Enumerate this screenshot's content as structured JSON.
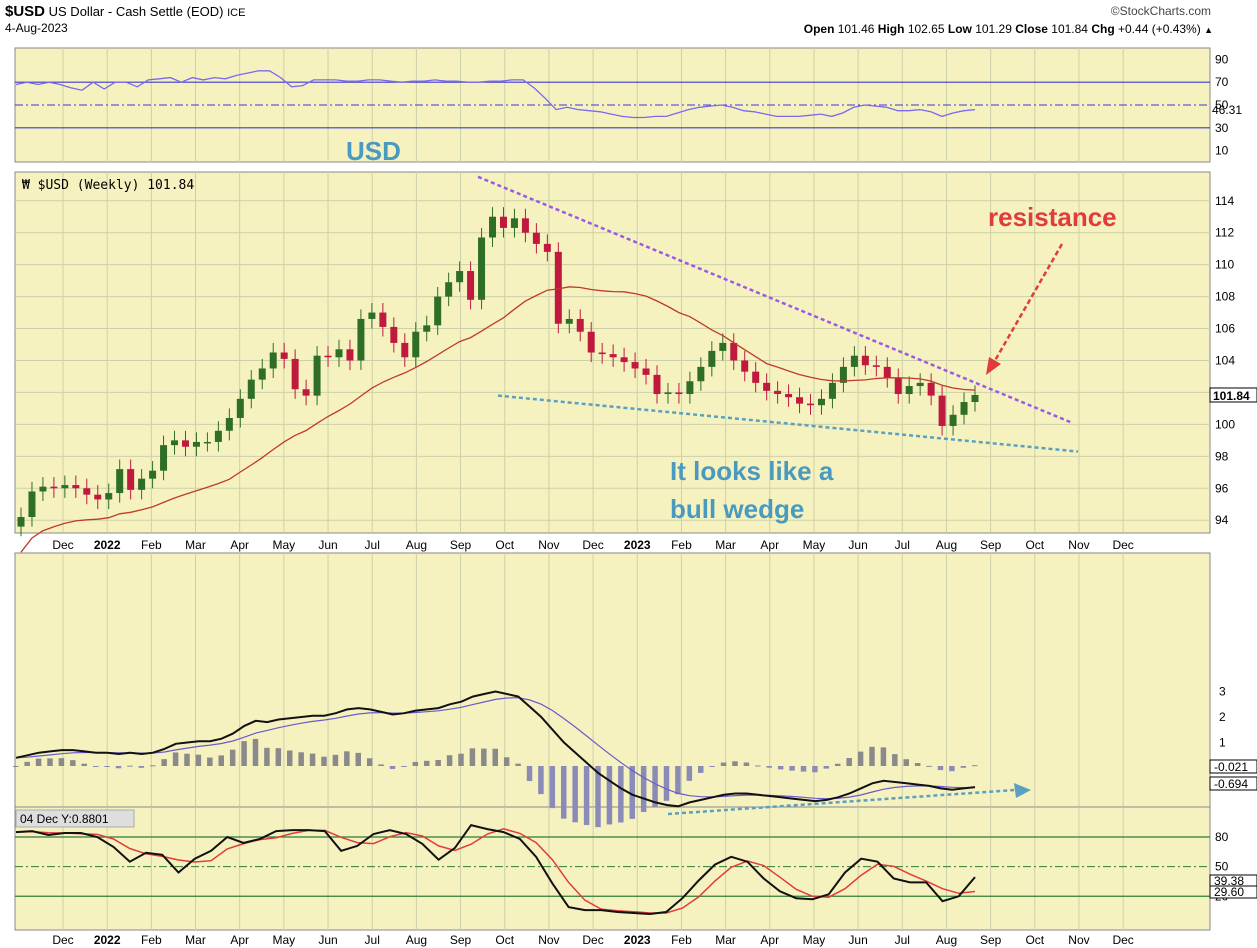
{
  "header": {
    "symbol": "$USD",
    "description": "US Dollar - Cash Settle (EOD)",
    "exchange": "ICE",
    "date": "4-Aug-2023",
    "source": "©StockCharts.com",
    "ohlc": {
      "open_label": "Open",
      "open": "101.46",
      "high_label": "High",
      "high": "102.65",
      "low_label": "Low",
      "low": "101.29",
      "close_label": "Close",
      "close": "101.84",
      "chg_label": "Chg",
      "chg": "+0.44 (+0.43%)"
    }
  },
  "colors": {
    "panel_bg": "#f6f2c0",
    "grid": "#ccd0a8",
    "up_candle": "#2f6e26",
    "down_candle": "#c0193e",
    "ma": "#c0392b",
    "rsi": "#7b68ee",
    "macd": "#111111",
    "signal": "#6a5acd",
    "histogram": "#8b8bb8",
    "stoch_k": "#111111",
    "stoch_d": "#e03c3c",
    "resistance_line": "#9b59e8",
    "support_line": "#5aa0c0",
    "annotation_usd": "#4a9ac0",
    "annotation_resistance": "#e03c3c"
  },
  "annotations": {
    "usd": "USD",
    "resistance": "resistance",
    "wedge_line1": "It looks like a",
    "wedge_line2": "bull wedge"
  },
  "chart_data": {
    "type": "candlestick",
    "title": "$USD (Weekly) 101.84",
    "x_axis_labels": [
      "Dec",
      "2022",
      "Feb",
      "Mar",
      "Apr",
      "May",
      "Jun",
      "Jul",
      "Aug",
      "Sep",
      "Oct",
      "Nov",
      "Dec",
      "2023",
      "Feb",
      "Mar",
      "Apr",
      "May",
      "Jun",
      "Jul",
      "Aug",
      "Sep",
      "Oct",
      "Nov",
      "Dec"
    ],
    "price_ticks": [
      94,
      96,
      98,
      100,
      102,
      104,
      106,
      108,
      110,
      112,
      114
    ],
    "ylim": [
      93.2,
      115.8
    ],
    "weekly_closes": [
      94.2,
      95.8,
      96.1,
      96.0,
      96.2,
      96.0,
      95.6,
      95.3,
      95.7,
      97.2,
      95.9,
      96.6,
      97.1,
      98.7,
      99.0,
      98.6,
      98.9,
      98.9,
      99.6,
      100.4,
      101.6,
      102.8,
      103.5,
      104.5,
      104.1,
      102.2,
      101.8,
      104.3,
      104.2,
      104.7,
      104.0,
      106.6,
      107.0,
      106.1,
      105.1,
      104.2,
      105.8,
      106.2,
      108.0,
      108.9,
      109.6,
      107.8,
      111.7,
      113.0,
      112.3,
      112.9,
      112.0,
      111.3,
      110.8,
      106.3,
      106.6,
      105.8,
      104.5,
      104.4,
      104.2,
      103.9,
      103.5,
      103.1,
      101.9,
      102.0,
      101.9,
      102.7,
      103.6,
      104.6,
      105.1,
      104.0,
      103.3,
      102.6,
      102.1,
      101.9,
      101.7,
      101.3,
      101.2,
      101.6,
      102.6,
      103.6,
      104.3,
      103.7,
      103.6,
      102.9,
      101.9,
      102.4,
      102.6,
      101.8,
      99.9,
      100.6,
      101.4,
      101.84
    ],
    "ma_ticks_note": "",
    "indicators": {
      "rsi": {
        "levels": [
          10,
          30,
          50,
          70,
          90
        ],
        "value": "46.31",
        "values": [
          68,
          70,
          68,
          70,
          68,
          65,
          63,
          70,
          64,
          70,
          70,
          66,
          72,
          73,
          74,
          70,
          74,
          72,
          74,
          73,
          76,
          78,
          80,
          80,
          74,
          66,
          67,
          72,
          72,
          72,
          71,
          71,
          72,
          72,
          71,
          70,
          71,
          71,
          72,
          71,
          71,
          70,
          70,
          71,
          71,
          72,
          72,
          65,
          56,
          46,
          48,
          46,
          45,
          44,
          42,
          40,
          39,
          39,
          40,
          40,
          43,
          46,
          48,
          49,
          50,
          48,
          45,
          44,
          42,
          40,
          40,
          40,
          41,
          42,
          40,
          43,
          48,
          50,
          49,
          48,
          45,
          45,
          46,
          44,
          40,
          43,
          45,
          46
        ]
      },
      "macd": {
        "ticks": [
          1,
          2,
          3
        ],
        "histogram_value": "-0.021",
        "signal_value": "-0.694",
        "macd_values": [
          0.4,
          0.5,
          0.6,
          0.65,
          0.7,
          0.7,
          0.65,
          0.6,
          0.6,
          0.55,
          0.6,
          0.55,
          0.6,
          0.75,
          0.95,
          1.0,
          1.05,
          1.05,
          1.15,
          1.35,
          1.65,
          1.85,
          1.8,
          1.9,
          1.95,
          2.0,
          2.05,
          2.05,
          2.15,
          2.3,
          2.35,
          2.3,
          2.2,
          2.1,
          2.15,
          2.25,
          2.3,
          2.35,
          2.5,
          2.6,
          2.8,
          2.9,
          3.0,
          2.9,
          2.8,
          2.4,
          2.0,
          1.5,
          1.0,
          0.6,
          0.2,
          -0.2,
          -0.5,
          -0.8,
          -1.05,
          -1.2,
          -1.35,
          -1.45,
          -1.5,
          -1.35,
          -1.25,
          -1.15,
          -1.05,
          -1.0,
          -1.0,
          -1.05,
          -1.1,
          -1.15,
          -1.2,
          -1.25,
          -1.3,
          -1.25,
          -1.15,
          -1.0,
          -0.8,
          -0.6,
          -0.5,
          -0.55,
          -0.6,
          -0.65,
          -0.7,
          -0.8,
          -0.85,
          -0.8,
          -0.75
        ]
      },
      "stochastic": {
        "title": "04 Dec Y:0.8801",
        "levels": [
          20,
          50,
          80
        ],
        "k_value": "39.38",
        "d_value": "29.60",
        "k_values": [
          85,
          86,
          82,
          84,
          84,
          80,
          70,
          55,
          64,
          62,
          44,
          58,
          66,
          80,
          74,
          78,
          86,
          87,
          87,
          86,
          66,
          71,
          83,
          87,
          83,
          73,
          57,
          69,
          92,
          88,
          85,
          78,
          60,
          33,
          9,
          6,
          6,
          4,
          3,
          2,
          4,
          18,
          36,
          52,
          60,
          55,
          38,
          25,
          18,
          17,
          22,
          44,
          58,
          55,
          38,
          34,
          34,
          15,
          20,
          39.38
        ]
      }
    }
  }
}
